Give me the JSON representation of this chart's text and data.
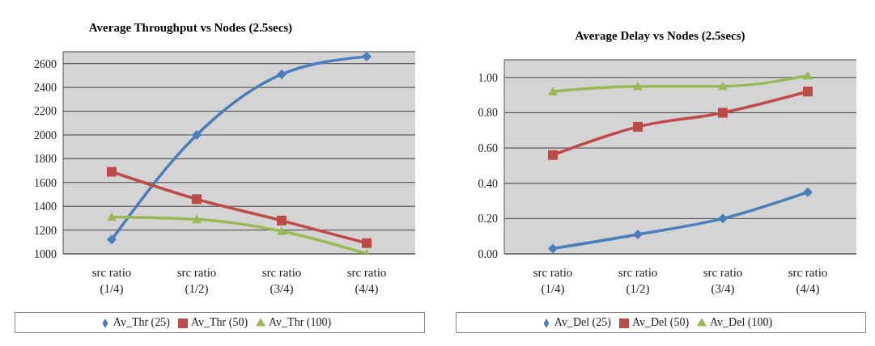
{
  "chart_data": [
    {
      "type": "line",
      "title": "Average Throughput vs Nodes (2.5secs)",
      "categories": [
        "src ratio (1/4)",
        "src ratio (1/2)",
        "src ratio (3/4)",
        "src ratio (4/4)"
      ],
      "series": [
        {
          "name": "Av_Thr (25)",
          "color": "#4a7ebb",
          "marker": "diamond",
          "values": [
            1120,
            2000,
            2510,
            2660
          ]
        },
        {
          "name": "Av_Thr (50)",
          "color": "#be4b48",
          "marker": "square",
          "values": [
            1690,
            1460,
            1280,
            1090
          ]
        },
        {
          "name": "Av_Thr (100)",
          "color": "#98b954",
          "marker": "triangle",
          "values": [
            1310,
            1290,
            1190,
            1000
          ]
        }
      ],
      "ylim": [
        1000,
        2700
      ],
      "yticks": [
        1000,
        1200,
        1400,
        1600,
        1800,
        2000,
        2200,
        2400,
        2600
      ],
      "grid": "y",
      "legend": "bottom",
      "line_style": "solid"
    },
    {
      "type": "line",
      "title": "Average Delay vs Nodes (2.5secs)",
      "categories": [
        "src ratio (1/4)",
        "src ratio (1/2)",
        "src ratio (3/4)",
        "src ratio (4/4)"
      ],
      "series": [
        {
          "name": "Av_Del (25)",
          "color": "#4a7ebb",
          "marker": "diamond",
          "values": [
            0.03,
            0.11,
            0.2,
            0.35
          ]
        },
        {
          "name": "Av_Del (50)",
          "color": "#be4b48",
          "marker": "square",
          "values": [
            0.56,
            0.72,
            0.8,
            0.92
          ]
        },
        {
          "name": "Av_Del (100)",
          "color": "#98b954",
          "marker": "triangle",
          "values": [
            0.92,
            0.95,
            0.95,
            1.01
          ]
        }
      ],
      "ylim": [
        0,
        1.1
      ],
      "yticks": [
        {
          "value": 0,
          "label": "0.00"
        },
        {
          "value": 0.2,
          "label": "0.20"
        },
        {
          "value": 0.4,
          "label": "0.40"
        },
        {
          "value": 0.6,
          "label": "0.60"
        },
        {
          "value": 0.8,
          "label": "0.80"
        },
        {
          "value": 1,
          "label": "1.00"
        }
      ],
      "grid": "y",
      "legend": "bottom",
      "line_style": "solid"
    }
  ]
}
